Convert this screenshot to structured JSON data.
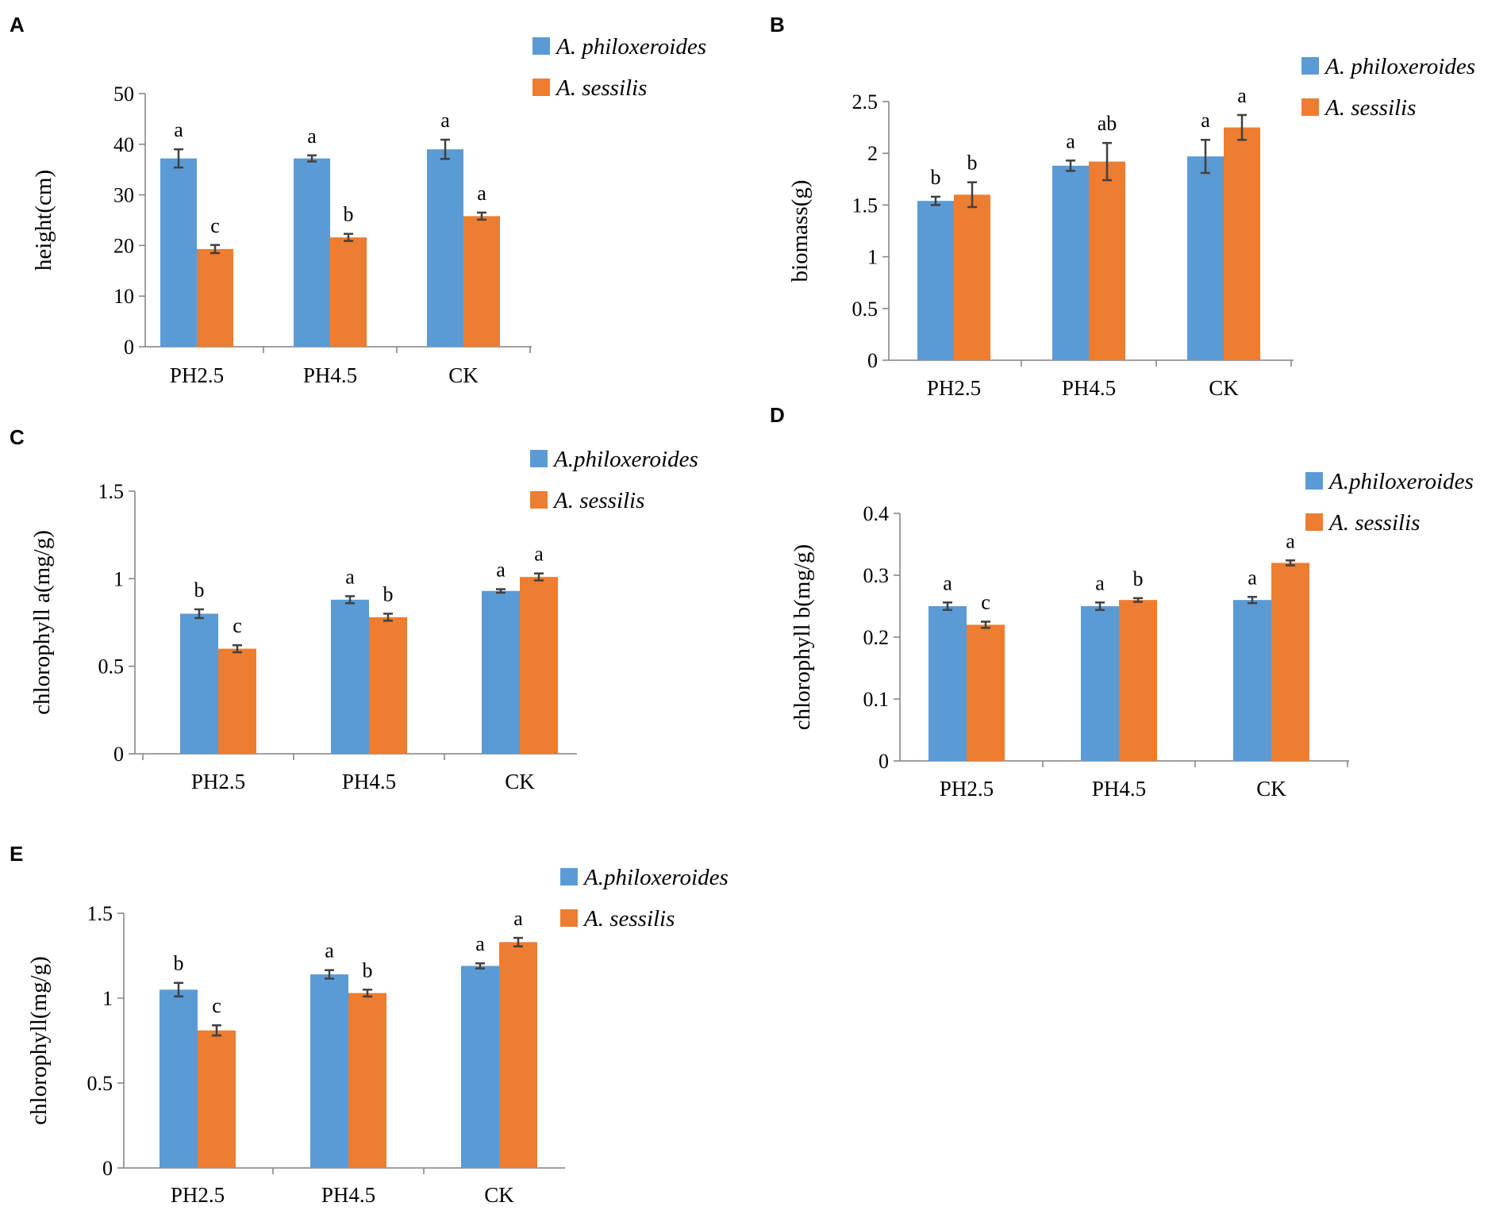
{
  "series_colors": {
    "A_philoxeroides": "#5b9bd5",
    "A_sessilis": "#ed7d31"
  },
  "chart_data": [
    {
      "panel": "A",
      "type": "bar",
      "ylabel": "height(cm)",
      "ylim": [
        0,
        50
      ],
      "yticks": [
        0,
        10,
        20,
        30,
        40,
        50
      ],
      "ytick_labels": [
        "0",
        "10",
        "20",
        "30",
        "40",
        "50"
      ],
      "categories": [
        "PH2.5",
        "PH4.5",
        "CK"
      ],
      "legend": [
        "A. philoxeroides",
        "A. sessilis"
      ],
      "series": [
        {
          "name": "A. philoxeroides",
          "values": [
            37.2,
            37.2,
            39.0
          ],
          "errors": [
            1.8,
            0.6,
            1.9
          ],
          "sig": [
            "a",
            "a",
            "a"
          ]
        },
        {
          "name": "A. sessilis",
          "values": [
            19.3,
            21.6,
            25.8
          ],
          "errors": [
            0.8,
            0.7,
            0.7
          ],
          "sig": [
            "c",
            "b",
            "a"
          ]
        }
      ]
    },
    {
      "panel": "B",
      "type": "bar",
      "ylabel": "biomass(g)",
      "ylim": [
        0,
        2.5
      ],
      "yticks": [
        0,
        0.5,
        1,
        1.5,
        2,
        2.5
      ],
      "ytick_labels": [
        "0",
        "0.5",
        "1",
        "1.5",
        "2",
        "2.5"
      ],
      "categories": [
        "PH2.5",
        "PH4.5",
        "CK"
      ],
      "legend": [
        "A. philoxeroides",
        "A. sessilis"
      ],
      "series": [
        {
          "name": "A. philoxeroides",
          "values": [
            1.54,
            1.88,
            1.97
          ],
          "errors": [
            0.04,
            0.05,
            0.16
          ],
          "sig": [
            "b",
            "a",
            "a"
          ]
        },
        {
          "name": "A. sessilis",
          "values": [
            1.6,
            1.92,
            2.25
          ],
          "errors": [
            0.12,
            0.18,
            0.12
          ],
          "sig": [
            "b",
            "ab",
            "a"
          ]
        }
      ]
    },
    {
      "panel": "C",
      "type": "bar",
      "ylabel": "chlorophyll a(mg/g)",
      "ylim": [
        0,
        1.5
      ],
      "yticks": [
        0,
        0.5,
        1,
        1.5
      ],
      "ytick_labels": [
        "0",
        "0.5",
        "1",
        "1.5"
      ],
      "categories": [
        "PH2.5",
        "PH4.5",
        "CK"
      ],
      "legend": [
        "A.philoxeroides",
        "A. sessilis"
      ],
      "series": [
        {
          "name": "A.philoxeroides",
          "values": [
            0.8,
            0.88,
            0.93
          ],
          "errors": [
            0.025,
            0.02,
            0.01
          ],
          "sig": [
            "b",
            "a",
            "a"
          ]
        },
        {
          "name": "A. sessilis",
          "values": [
            0.6,
            0.78,
            1.01
          ],
          "errors": [
            0.02,
            0.02,
            0.02
          ],
          "sig": [
            "c",
            "b",
            "a"
          ]
        }
      ]
    },
    {
      "panel": "D",
      "type": "bar",
      "ylabel": "chlorophyll b(mg/g)",
      "ylim": [
        0,
        0.4
      ],
      "yticks": [
        0,
        0.1,
        0.2,
        0.3,
        0.4
      ],
      "ytick_labels": [
        "0",
        "0.1",
        "0.2",
        "0.3",
        "0.4"
      ],
      "categories": [
        "PH2.5",
        "PH4.5",
        "CK"
      ],
      "legend": [
        "A.philoxeroides",
        "A. sessilis"
      ],
      "series": [
        {
          "name": "A.philoxeroides",
          "values": [
            0.25,
            0.25,
            0.26
          ],
          "errors": [
            0.006,
            0.006,
            0.005
          ],
          "sig": [
            "a",
            "a",
            "a"
          ]
        },
        {
          "name": "A. sessilis",
          "values": [
            0.22,
            0.26,
            0.32
          ],
          "errors": [
            0.005,
            0.003,
            0.004
          ],
          "sig": [
            "c",
            "b",
            "a"
          ]
        }
      ]
    },
    {
      "panel": "E",
      "type": "bar",
      "ylabel": "chlorophyll(mg/g)",
      "ylim": [
        0,
        1.5
      ],
      "yticks": [
        0,
        0.5,
        1,
        1.5
      ],
      "ytick_labels": [
        "0",
        "0.5",
        "1",
        "1.5"
      ],
      "categories": [
        "PH2.5",
        "PH4.5",
        "CK"
      ],
      "legend": [
        "A.philoxeroides",
        "A. sessilis"
      ],
      "series": [
        {
          "name": "A.philoxeroides",
          "values": [
            1.05,
            1.14,
            1.19
          ],
          "errors": [
            0.04,
            0.025,
            0.015
          ],
          "sig": [
            "b",
            "a",
            "a"
          ]
        },
        {
          "name": "A. sessilis",
          "values": [
            0.81,
            1.03,
            1.33
          ],
          "errors": [
            0.03,
            0.02,
            0.025
          ],
          "sig": [
            "c",
            "b",
            "a"
          ]
        }
      ]
    }
  ]
}
